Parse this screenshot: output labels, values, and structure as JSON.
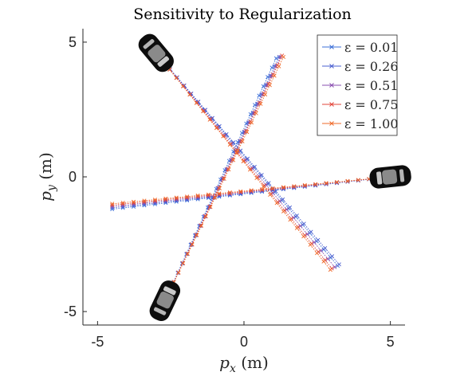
{
  "chart_data": {
    "type": "line",
    "title": "Sensitivity to Regularization",
    "xlabel": "p_x (m)",
    "ylabel": "p_y (m)",
    "xlim": [
      -5.5,
      5.5
    ],
    "ylim": [
      -5.5,
      5.5
    ],
    "xticks": [
      {
        "value": -5,
        "label": "-5"
      },
      {
        "value": 0,
        "label": "0"
      },
      {
        "value": 5,
        "label": "5"
      }
    ],
    "yticks": [
      {
        "value": -5,
        "label": "-5"
      },
      {
        "value": 0,
        "label": "0"
      },
      {
        "value": 5,
        "label": "5"
      }
    ],
    "grid": false,
    "legend_position": "top-right",
    "marker": "x",
    "series": [
      {
        "name": "ε = 0.01",
        "color": "#3b6fd8"
      },
      {
        "name": "ε = 0.26",
        "color": "#4a5fd0"
      },
      {
        "name": "ε = 0.51",
        "color": "#8a4fb0"
      },
      {
        "name": "ε = 0.75",
        "color": "#e2453a"
      },
      {
        "name": "ε = 1.00",
        "color": "#ef6a2a"
      }
    ],
    "trajectories": [
      {
        "vehicle": "top-left",
        "start": [
          -3.0,
          4.6
        ],
        "end_by_series": [
          [
            3.2,
            -3.3
          ],
          [
            3.25,
            -3.25
          ],
          [
            3.1,
            -3.35
          ],
          [
            3.0,
            -3.4
          ],
          [
            2.95,
            -3.45
          ]
        ]
      },
      {
        "vehicle": "right",
        "start": [
          5.0,
          0.0
        ],
        "end_by_series": [
          [
            -4.5,
            -1.2
          ],
          [
            -4.5,
            -1.15
          ],
          [
            -4.5,
            -1.1
          ],
          [
            -4.5,
            -1.05
          ],
          [
            -4.5,
            -1.0
          ]
        ]
      },
      {
        "vehicle": "bottom-left",
        "start": [
          -2.7,
          -4.6
        ],
        "end_by_series": [
          [
            1.1,
            4.4
          ],
          [
            1.2,
            4.45
          ],
          [
            1.25,
            4.45
          ],
          [
            1.3,
            4.5
          ],
          [
            1.35,
            4.45
          ]
        ]
      }
    ],
    "vehicles": [
      {
        "name": "top-left",
        "position": [
          -3.0,
          4.6
        ]
      },
      {
        "name": "right",
        "position": [
          5.0,
          0.0
        ]
      },
      {
        "name": "bottom-left",
        "position": [
          -2.7,
          -4.6
        ]
      }
    ]
  }
}
